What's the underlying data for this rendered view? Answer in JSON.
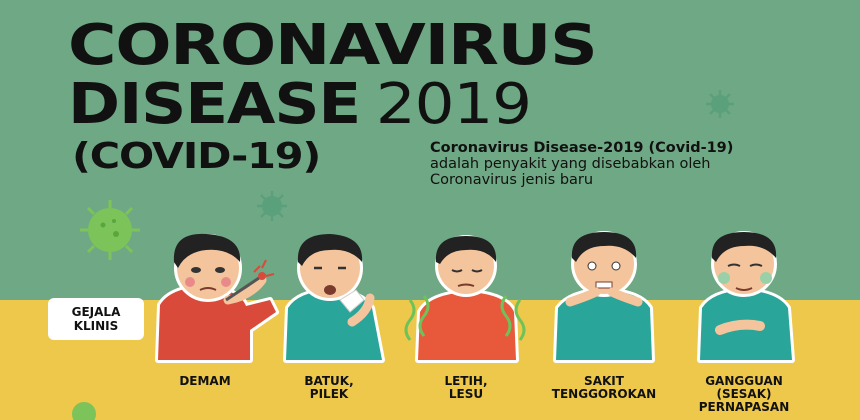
{
  "title_line1": "CORONAVIRUS",
  "title_line2_word": "DISEASE",
  "title_line2_year": "2019",
  "title_line3": "(COVID-19)",
  "description": {
    "line1": "Coronavirus Disease-2019 (Covid-19)",
    "line2": "adalah penyakit yang disebabkan oleh",
    "line3": "Coronavirus jenis baru"
  },
  "badge": {
    "line1": "GEJALA",
    "line2": "KLINIS"
  },
  "symptoms": [
    {
      "lines": [
        "DEMAM"
      ]
    },
    {
      "lines": [
        "BATUK,",
        "PILEK"
      ]
    },
    {
      "lines": [
        "LETIH,",
        "LESU"
      ]
    },
    {
      "lines": [
        "SAKIT",
        "TENGGOROKAN"
      ]
    },
    {
      "lines": [
        "GANGGUAN",
        "(SESAK)",
        "PERNAPASAN"
      ]
    }
  ],
  "colors": {
    "background_green": "#6fa884",
    "background_yellow": "#edc84a",
    "virus_green": "#7cc35a",
    "shirt_red": "#d94a3a",
    "shirt_teal": "#2aa59a",
    "skin": "#f4c59d",
    "hair": "#222222"
  },
  "icons": [
    "virus-icon",
    "thermometer-icon"
  ]
}
